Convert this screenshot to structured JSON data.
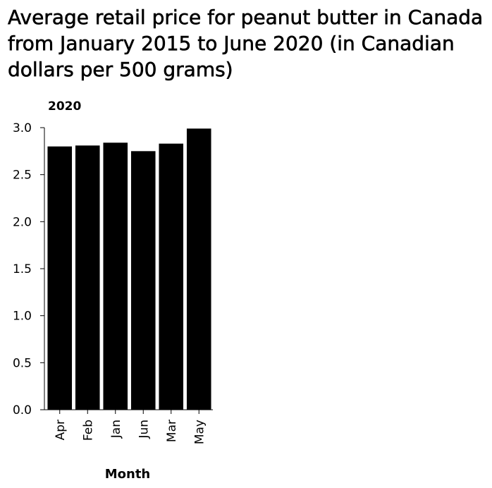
{
  "chart_data": {
    "type": "bar",
    "title": "Average retail price for peanut butter in Canada from January 2015 to June 2020 (in Canadian dollars per 500 grams)",
    "series_label": "2020",
    "xlabel": "Month",
    "ylabel": "",
    "categories": [
      "Apr",
      "Feb",
      "Jan",
      "Jun",
      "Mar",
      "May"
    ],
    "values": [
      2.8,
      2.81,
      2.84,
      2.75,
      2.83,
      2.99
    ],
    "ylim": [
      0,
      3.0
    ],
    "yticks": [
      "0.0",
      "0.5",
      "1.0",
      "1.5",
      "2.0",
      "2.5",
      "3.0"
    ],
    "bar_color": "#000000",
    "grid": false,
    "legend": "none"
  }
}
